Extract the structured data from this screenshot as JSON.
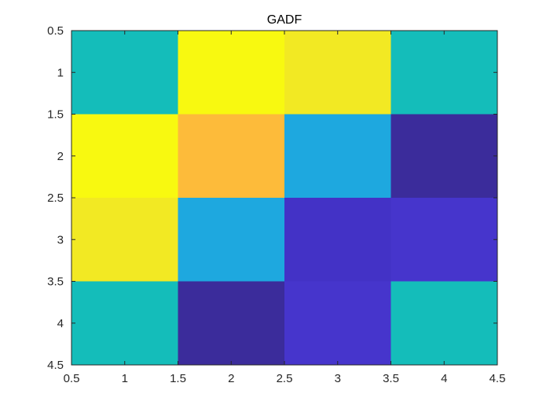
{
  "chart_data": {
    "type": "heatmap",
    "title": "GADF",
    "xlabel": "",
    "ylabel": "",
    "xlim": [
      0.5,
      4.5
    ],
    "ylim": [
      0.5,
      4.5
    ],
    "y_direction": "reverse",
    "x_ticks": [
      "0.5",
      "1",
      "1.5",
      "2",
      "2.5",
      "3",
      "3.5",
      "4",
      "4.5"
    ],
    "y_ticks": [
      "0.5",
      "1",
      "1.5",
      "2",
      "2.5",
      "3",
      "3.5",
      "4",
      "4.5"
    ],
    "colormap": "parula",
    "grid": false,
    "rows": [
      [
        0.5,
        1.0,
        0.95,
        0.5
      ],
      [
        1.0,
        0.82,
        0.38,
        0.04
      ],
      [
        0.95,
        0.38,
        0.07,
        0.09
      ],
      [
        0.5,
        0.04,
        0.09,
        0.5
      ]
    ],
    "cell_colors": [
      [
        "#14bdba",
        "#f8f910",
        "#f2e923",
        "#14bdba"
      ],
      [
        "#f8f910",
        "#fdbb3a",
        "#1ea8df",
        "#3b2c9b"
      ],
      [
        "#f2e923",
        "#1ea8df",
        "#4332c6",
        "#4635cc"
      ],
      [
        "#14bdba",
        "#3b2c9b",
        "#4635cc",
        "#14bdba"
      ]
    ]
  }
}
